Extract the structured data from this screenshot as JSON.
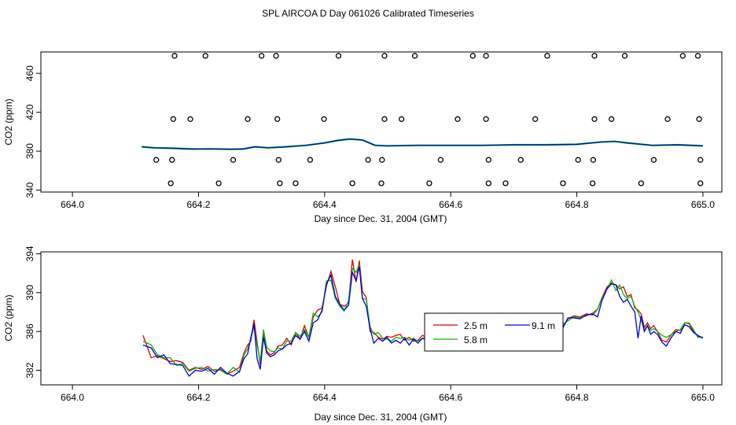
{
  "title": "SPL AIRCOA D  Day 061026  Calibrated Timeseries",
  "colors": {
    "s1": "#dd0000",
    "s2": "#00bb00",
    "s3": "#0000dd",
    "axis": "#000000"
  },
  "chart_data": [
    {
      "type": "scatter",
      "xlabel": "Day since Dec. 31, 2004 (GMT)",
      "ylabel": "CO2 (ppm)",
      "xlim": [
        663.95,
        665.03
      ],
      "ylim": [
        338,
        482
      ],
      "xticks": [
        "664.0",
        "664.2",
        "664.4",
        "664.6",
        "664.8",
        "665.0"
      ],
      "yticks": [
        "340",
        "380",
        "420",
        "460"
      ],
      "grid": false,
      "outliers": {
        "x": [
          664.162,
          664.211,
          664.3,
          664.323,
          664.422,
          664.495,
          664.543,
          664.635,
          664.656,
          664.753,
          664.828,
          664.876,
          664.968,
          664.992,
          664.16,
          664.187,
          664.278,
          664.325,
          664.399,
          664.495,
          664.522,
          664.611,
          664.656,
          664.734,
          664.828,
          664.855,
          664.944,
          664.994,
          664.133,
          664.158,
          664.255,
          664.327,
          664.377,
          664.469,
          664.491,
          664.584,
          664.66,
          664.711,
          664.802,
          664.826,
          664.922,
          664.996,
          664.156,
          664.232,
          664.329,
          664.354,
          664.444,
          664.49,
          664.566,
          664.66,
          664.687,
          664.778,
          664.825,
          664.902,
          664.996
        ],
        "y": [
          478,
          478,
          478,
          478,
          478,
          478,
          478,
          478,
          478,
          478,
          478,
          478,
          478,
          478,
          413,
          413,
          413,
          413,
          413,
          413,
          413,
          413,
          413,
          413,
          413,
          413,
          413,
          413,
          371,
          371,
          371,
          371,
          371,
          371,
          371,
          371,
          371,
          371,
          371,
          371,
          371,
          371,
          347,
          347,
          347,
          347,
          347,
          347,
          347,
          347,
          347,
          347,
          347,
          347,
          347
        ]
      },
      "series": [
        {
          "name": "",
          "x": [
            664.11,
            664.13,
            664.16,
            664.19,
            664.22,
            664.25,
            664.27,
            664.29,
            664.31,
            664.34,
            664.37,
            664.4,
            664.42,
            664.44,
            664.46,
            664.48,
            664.5,
            664.55,
            664.6,
            664.65,
            664.7,
            664.75,
            664.8,
            664.84,
            664.86,
            664.88,
            664.92,
            664.96,
            665.0
          ],
          "y": [
            384.5,
            383.5,
            383,
            382.2,
            382.3,
            382,
            382.2,
            384.5,
            383.5,
            384.5,
            386,
            388.5,
            391,
            392.5,
            391.5,
            386,
            385.5,
            386,
            386,
            386,
            386.5,
            386.5,
            387,
            389.5,
            390,
            388.5,
            386,
            386.5,
            385.5
          ]
        }
      ]
    },
    {
      "type": "line",
      "xlabel": "Day since Dec. 31, 2004 (GMT)",
      "ylabel": "CO2 (ppm)",
      "xlim": [
        663.95,
        665.03
      ],
      "ylim": [
        380.5,
        394.2
      ],
      "xticks": [
        "664.0",
        "664.2",
        "664.4",
        "664.6",
        "664.8",
        "665.0"
      ],
      "yticks": [
        "382",
        "386",
        "390",
        "394"
      ],
      "grid": false,
      "legend": {
        "position": "center-right",
        "entries": [
          "2.5 m",
          "5.8 m",
          "9.1 m"
        ]
      },
      "x": [
        664.112,
        664.125,
        664.135,
        664.145,
        664.155,
        664.165,
        664.175,
        664.185,
        664.195,
        664.205,
        664.215,
        664.225,
        664.235,
        664.245,
        664.255,
        664.265,
        664.272,
        664.278,
        664.283,
        664.288,
        664.293,
        664.298,
        664.303,
        664.308,
        664.314,
        664.32,
        664.326,
        664.333,
        664.34,
        664.347,
        664.354,
        664.361,
        664.368,
        664.375,
        664.382,
        664.389,
        664.396,
        664.403,
        664.41,
        664.417,
        664.424,
        664.431,
        664.438,
        664.444,
        664.45,
        664.455,
        664.46,
        664.466,
        664.472,
        664.478,
        664.485,
        664.492,
        664.499,
        664.506,
        664.513,
        664.52,
        664.527,
        664.534,
        664.541,
        664.548,
        664.555,
        664.562,
        664.569,
        664.576,
        664.583,
        664.59,
        664.597,
        664.604,
        664.611,
        664.618,
        664.625,
        664.632,
        664.639,
        664.646,
        664.653,
        664.66,
        664.667,
        664.674,
        664.681,
        664.688,
        664.695,
        664.702,
        664.709,
        664.716,
        664.723,
        664.73,
        664.737,
        664.744,
        664.751,
        664.758,
        664.765,
        664.772,
        664.779,
        664.786,
        664.795,
        664.805,
        664.815,
        664.825,
        664.833,
        664.84,
        664.848,
        664.855,
        664.862,
        664.868,
        664.874,
        664.88,
        664.886,
        664.892,
        664.897,
        664.902,
        664.907,
        664.912,
        664.917,
        664.922,
        664.928,
        664.935,
        664.942,
        664.95,
        664.957,
        664.964,
        664.971,
        664.978,
        664.985,
        664.992,
        665.0
      ],
      "series": [
        {
          "name": "2.5 m",
          "y": [
            385.6,
            383.3,
            383.5,
            383.2,
            382.9,
            383.0,
            382.8,
            382.0,
            382.3,
            382.1,
            382.4,
            381.9,
            382.1,
            381.6,
            381.9,
            382.3,
            383.8,
            384.6,
            385.0,
            387.2,
            384.9,
            382.6,
            385.9,
            384.0,
            383.6,
            383.8,
            384.5,
            384.6,
            385.3,
            384.6,
            385.9,
            385.2,
            386.6,
            385.4,
            387.5,
            388.2,
            388.4,
            390.7,
            392.2,
            390.6,
            388.8,
            388.6,
            388.9,
            393.4,
            391.1,
            393.3,
            390.1,
            389.5,
            386.0,
            385.9,
            385.4,
            385.2,
            385.5,
            385.4,
            385.6,
            385.7,
            385.1,
            385.4,
            385.0,
            385.1,
            385.6,
            385.4,
            385.6,
            385.3,
            385.5,
            385.9,
            385.6,
            386.0,
            385.7,
            386.3,
            386.1,
            386.0,
            386.2,
            386.1,
            386.4,
            386.1,
            386.3,
            386.4,
            386.3,
            386.1,
            386.6,
            386.3,
            386.7,
            386.5,
            386.3,
            386.3,
            386.5,
            386.8,
            386.6,
            386.4,
            386.6,
            386.7,
            386.6,
            387.3,
            387.6,
            387.5,
            387.8,
            387.7,
            388.3,
            389.5,
            390.6,
            391.0,
            390.8,
            390.4,
            390.6,
            389.6,
            389.8,
            388.4,
            388.2,
            387.8,
            386.4,
            386.9,
            386.3,
            386.6,
            386.0,
            385.1,
            384.9,
            385.7,
            386.2,
            386.1,
            386.9,
            386.8,
            386.0,
            385.5,
            385.4
          ]
        },
        {
          "name": "5.8 m",
          "y": [
            385.0,
            384.6,
            383.6,
            383.3,
            383.3,
            382.5,
            382.7,
            381.9,
            382.2,
            382.3,
            381.9,
            382.1,
            382.0,
            381.6,
            382.3,
            381.8,
            383.6,
            384.2,
            385.2,
            386.5,
            384.6,
            382.9,
            386.2,
            384.4,
            384.0,
            383.9,
            384.3,
            384.2,
            385.0,
            385.0,
            385.9,
            385.5,
            386.2,
            385.4,
            387.9,
            387.5,
            388.0,
            391.2,
            391.3,
            389.4,
            388.6,
            388.1,
            389.2,
            392.5,
            392.1,
            392.9,
            389.4,
            389.3,
            386.5,
            385.7,
            385.9,
            385.3,
            385.2,
            385.0,
            385.4,
            385.3,
            385.4,
            385.1,
            385.3,
            385.0,
            385.3,
            385.4,
            385.4,
            385.6,
            385.7,
            385.8,
            385.7,
            385.9,
            385.8,
            385.9,
            386.0,
            386.1,
            386.5,
            386.4,
            386.3,
            386.2,
            386.3,
            386.0,
            386.3,
            386.4,
            386.4,
            386.8,
            386.4,
            386.5,
            386.5,
            386.1,
            386.9,
            386.6,
            386.8,
            386.3,
            386.5,
            386.8,
            386.8,
            387.1,
            387.5,
            387.4,
            387.6,
            387.9,
            388.3,
            389.4,
            390.4,
            391.3,
            390.2,
            390.8,
            389.8,
            389.4,
            389.6,
            388.6,
            388.0,
            387.2,
            386.1,
            386.6,
            386.1,
            386.3,
            386.0,
            385.6,
            385.4,
            385.7,
            386.0,
            386.2,
            386.9,
            386.9,
            386.2,
            385.4,
            385.4
          ]
        },
        {
          "name": "9.1 m",
          "y": [
            384.6,
            384.3,
            383.3,
            383.6,
            382.7,
            382.6,
            382.5,
            381.4,
            382.0,
            381.9,
            382.2,
            381.6,
            382.3,
            381.7,
            381.4,
            381.9,
            383.2,
            383.7,
            385.4,
            386.8,
            383.2,
            382.1,
            385.4,
            383.8,
            383.4,
            383.6,
            384.0,
            384.2,
            384.6,
            384.8,
            385.6,
            385.2,
            386.0,
            385.0,
            386.9,
            387.2,
            388.2,
            390.9,
            391.8,
            389.6,
            388.8,
            388.2,
            388.7,
            392.1,
            391.2,
            392.7,
            389.4,
            388.6,
            386.3,
            384.8,
            385.3,
            385.0,
            385.4,
            384.8,
            385.1,
            384.8,
            385.3,
            384.6,
            385.2,
            384.8,
            385.3,
            385.1,
            385.4,
            385.0,
            385.4,
            385.9,
            385.3,
            385.8,
            385.6,
            385.7,
            386.1,
            385.9,
            386.0,
            386.1,
            386.2,
            385.9,
            386.2,
            386.3,
            386.1,
            386.2,
            386.3,
            386.4,
            386.6,
            386.1,
            386.4,
            386.3,
            386.4,
            386.6,
            385.7,
            386.8,
            386.2,
            385.6,
            386.5,
            387.4,
            387.4,
            387.3,
            387.7,
            387.8,
            387.5,
            389.2,
            390.4,
            390.9,
            390.8,
            389.6,
            389.0,
            389.3,
            388.6,
            388.0,
            385.3,
            387.6,
            386.0,
            386.6,
            385.7,
            386.0,
            385.7,
            384.9,
            384.5,
            385.4,
            386.0,
            385.8,
            386.7,
            386.5,
            385.9,
            385.6,
            385.3
          ]
        }
      ]
    }
  ]
}
